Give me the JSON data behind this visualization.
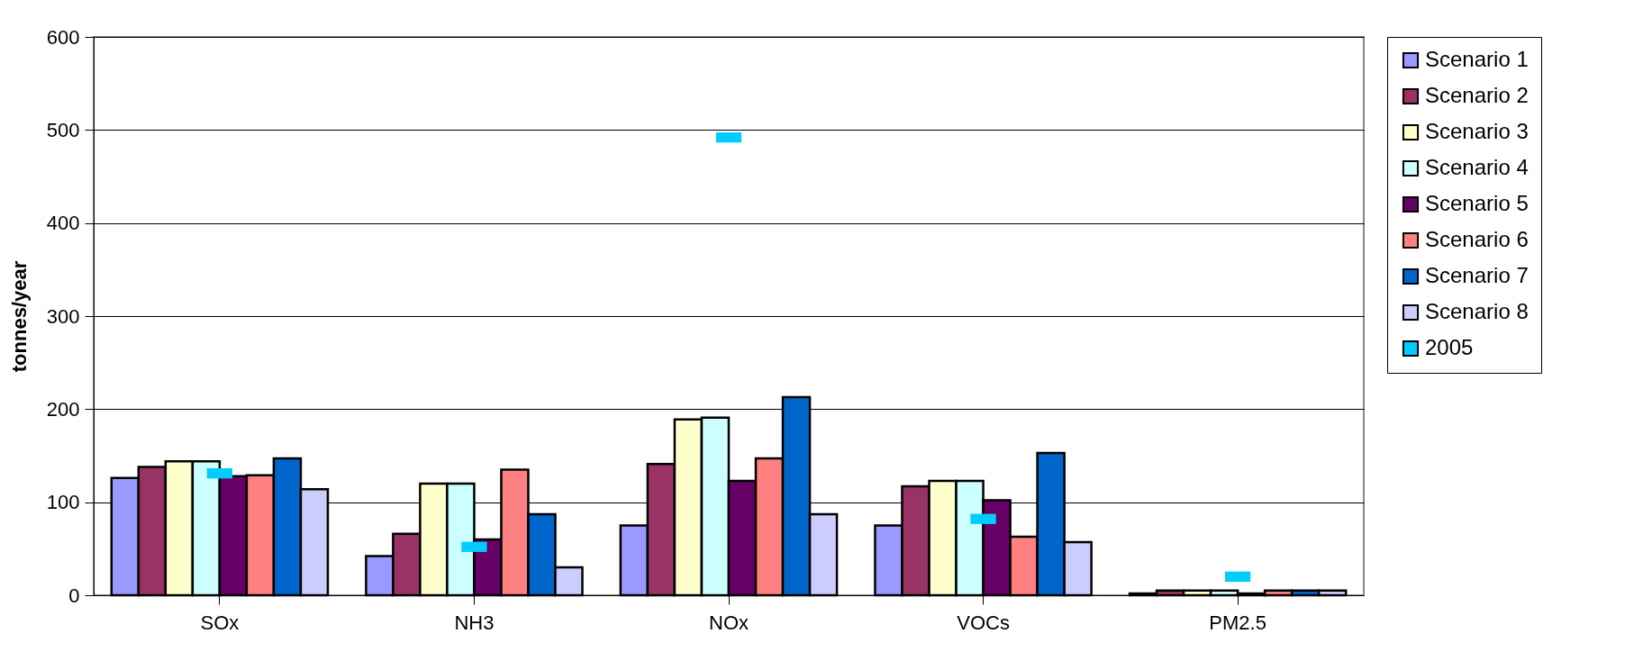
{
  "chart_data": {
    "type": "bar",
    "ylabel": "tonnes/year",
    "categories": [
      "SOx",
      "NH3",
      "NOx",
      "VOCs",
      "PM2.5"
    ],
    "ylim": [
      0,
      600
    ],
    "yticks": [
      0,
      100,
      200,
      300,
      400,
      500,
      600
    ],
    "grid": "y",
    "legend": "right",
    "series": [
      {
        "name": "Scenario 1",
        "color": "#9999ff",
        "values": [
          126,
          42,
          75,
          75,
          2
        ]
      },
      {
        "name": "Scenario 2",
        "color": "#993366",
        "values": [
          138,
          66,
          141,
          117,
          5
        ]
      },
      {
        "name": "Scenario 3",
        "color": "#ffffcc",
        "values": [
          144,
          120,
          189,
          123,
          5
        ]
      },
      {
        "name": "Scenario 4",
        "color": "#ccffff",
        "values": [
          144,
          120,
          191,
          123,
          5
        ]
      },
      {
        "name": "Scenario 5",
        "color": "#660066",
        "values": [
          128,
          60,
          123,
          102,
          2
        ]
      },
      {
        "name": "Scenario 6",
        "color": "#ff8080",
        "values": [
          129,
          135,
          147,
          63,
          5
        ]
      },
      {
        "name": "Scenario 7",
        "color": "#0066cc",
        "values": [
          147,
          87,
          213,
          153,
          5
        ]
      },
      {
        "name": "Scenario 8",
        "color": "#ccccff",
        "values": [
          114,
          30,
          87,
          57,
          5
        ]
      },
      {
        "name": "2005",
        "type": "scatter",
        "color": "#00ccff",
        "values": [
          131,
          52,
          492,
          82,
          20
        ]
      }
    ]
  }
}
